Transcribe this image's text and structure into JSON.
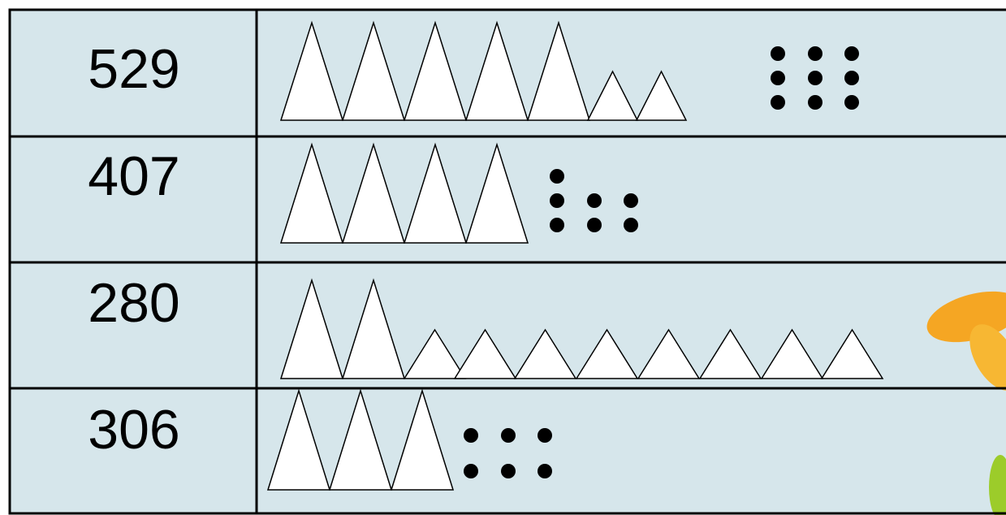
{
  "table": {
    "rows": [
      [
        "529"
      ],
      [
        "407"
      ],
      [
        "280"
      ],
      [
        "306"
      ]
    ]
  }
}
